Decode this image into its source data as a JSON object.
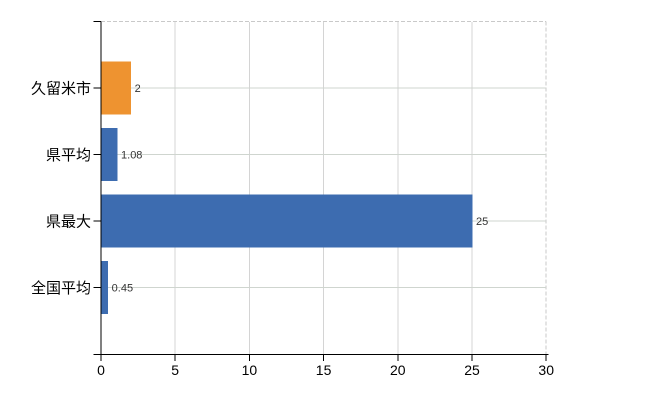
{
  "chart_data": {
    "type": "bar",
    "orientation": "horizontal",
    "title": "",
    "xlabel": "",
    "ylabel": "",
    "categories": [
      "久留米市",
      "県平均",
      "県最大",
      "全国平均"
    ],
    "values": [
      2,
      1.08,
      25,
      0.45
    ],
    "value_labels": [
      "2",
      "1.08",
      "25",
      "0.45"
    ],
    "series_colors": [
      "#EE9330",
      "#3D6CB0",
      "#3D6CB0",
      "#3D6CB0"
    ],
    "xlim": [
      0,
      30
    ],
    "x_ticks": [
      0,
      5,
      10,
      15,
      20,
      25,
      30
    ],
    "x_tick_labels": [
      "0",
      "5",
      "10",
      "15",
      "20",
      "25",
      "30"
    ],
    "grid": true,
    "legend": false,
    "plot_border_style": "dashed-top-right"
  },
  "colors": {
    "background": "#ffffff",
    "bar_orange": "#EE9330",
    "bar_blue": "#3D6CB0",
    "axis": "#000000",
    "grid_vertical": "#d4d4d4",
    "grid_horizontal": "#cfd5cf",
    "plot_border": "#c9c9c9",
    "category_label": "#000000",
    "tick_label": "#000000",
    "value_label": "#333333"
  }
}
